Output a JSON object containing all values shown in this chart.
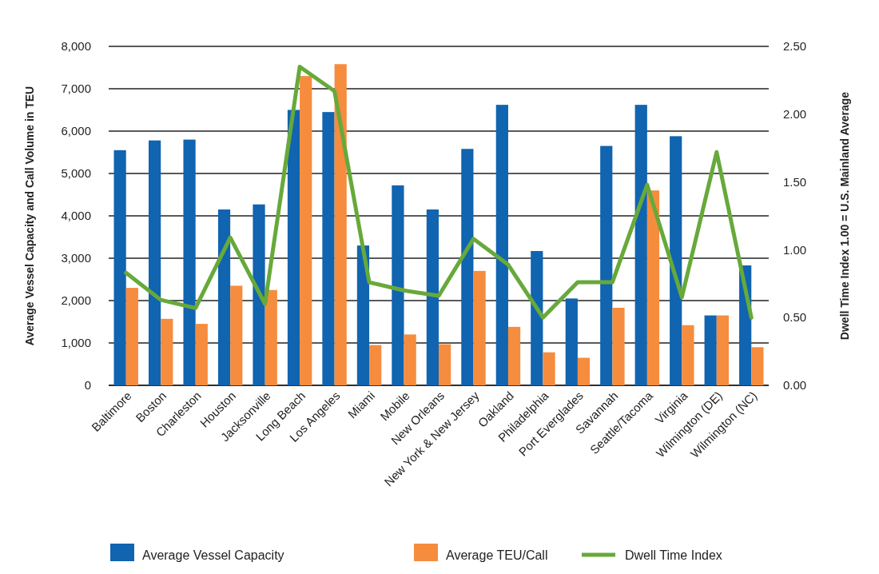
{
  "chart_data": {
    "type": "bar",
    "ylabel": "Average Vessel Capacity and Call Volume in TEU",
    "y2label": "Dwell Time Index 1.00 = U.S. Mainland Average",
    "categories": [
      "Baltimore",
      "Boston",
      "Charleston",
      "Houston",
      "Jacksonville",
      "Long Beach",
      "Los Angeles",
      "Miami",
      "Mobile",
      "New Orleans",
      "New York & New Jersey",
      "Oakland",
      "Philadelphia",
      "Port Everglades",
      "Savannah",
      "Seattle/Tacoma",
      "Virginia",
      "Wilmington (DE)",
      "Wilmington (NC)"
    ],
    "series": [
      {
        "name": "Average Vessel Capacity",
        "color": "#1064b0",
        "values": [
          5550,
          5780,
          5800,
          4150,
          4270,
          6500,
          6450,
          3300,
          4720,
          4150,
          5580,
          6620,
          3170,
          2050,
          5650,
          6620,
          5880,
          1650,
          2830
        ]
      },
      {
        "name": "Average TEU/Call",
        "color": "#f68c3e",
        "values": [
          2300,
          1570,
          1450,
          2350,
          2250,
          7300,
          7580,
          950,
          1200,
          970,
          2700,
          1380,
          780,
          650,
          1830,
          4600,
          1420,
          1650,
          900
        ]
      },
      {
        "name": "Dwell Time Index",
        "type": "line",
        "axis": "y2",
        "color": "#67a93a",
        "values": [
          0.83,
          0.63,
          0.57,
          1.09,
          0.6,
          2.35,
          2.17,
          0.76,
          0.7,
          0.66,
          1.08,
          0.89,
          0.5,
          0.76,
          0.76,
          1.48,
          0.65,
          1.72,
          0.5
        ]
      }
    ],
    "ylim": [
      0,
      8000
    ],
    "yticks": [
      {
        "value": 0,
        "label": "0"
      },
      {
        "value": 1000,
        "label": "1,000"
      },
      {
        "value": 2000,
        "label": "2,000"
      },
      {
        "value": 3000,
        "label": "3,000"
      },
      {
        "value": 4000,
        "label": "4,000"
      },
      {
        "value": 5000,
        "label": "5,000"
      },
      {
        "value": 6000,
        "label": "6,000"
      },
      {
        "value": 7000,
        "label": "7,000"
      },
      {
        "value": 8000,
        "label": "8,000"
      }
    ],
    "y2lim": [
      0,
      2.5
    ],
    "y2ticks": [
      {
        "value": 0,
        "label": "0.00"
      },
      {
        "value": 0.5,
        "label": "0.50"
      },
      {
        "value": 1,
        "label": "1.00"
      },
      {
        "value": 1.5,
        "label": "1.50"
      },
      {
        "value": 2,
        "label": "2.00"
      },
      {
        "value": 2.5,
        "label": "2.50"
      }
    ],
    "grid": "y",
    "legend": "bottom"
  }
}
